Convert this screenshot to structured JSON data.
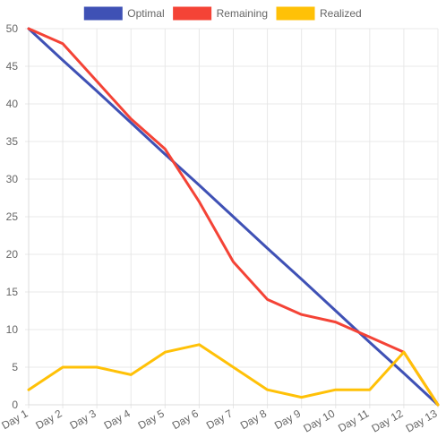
{
  "chart_data": {
    "type": "line",
    "categories": [
      "Day 1",
      "Day 2",
      "Day 3",
      "Day 4",
      "Day 5",
      "Day 6",
      "Day 7",
      "Day 8",
      "Day 9",
      "Day 10",
      "Day 11",
      "Day 12",
      "Day 13"
    ],
    "series": [
      {
        "name": "Optimal",
        "color": "#3f51b5",
        "values": [
          50,
          45.8,
          41.7,
          37.5,
          33.3,
          29.2,
          25,
          20.8,
          16.7,
          12.5,
          8.3,
          4.2,
          0
        ]
      },
      {
        "name": "Remaining",
        "color": "#f44336",
        "values": [
          50,
          48,
          43,
          38,
          34,
          27,
          19,
          14,
          12,
          11,
          9,
          7,
          0
        ]
      },
      {
        "name": "Realized",
        "color": "#ffc107",
        "values": [
          2,
          5,
          5,
          4,
          7,
          8,
          5,
          2,
          1,
          2,
          2,
          7,
          0
        ]
      }
    ],
    "ylim": [
      0,
      50
    ],
    "yticks": [
      "0",
      "5",
      "10",
      "15",
      "20",
      "25",
      "30",
      "35",
      "40",
      "45",
      "50"
    ],
    "legend_position": "top",
    "grid": true
  }
}
